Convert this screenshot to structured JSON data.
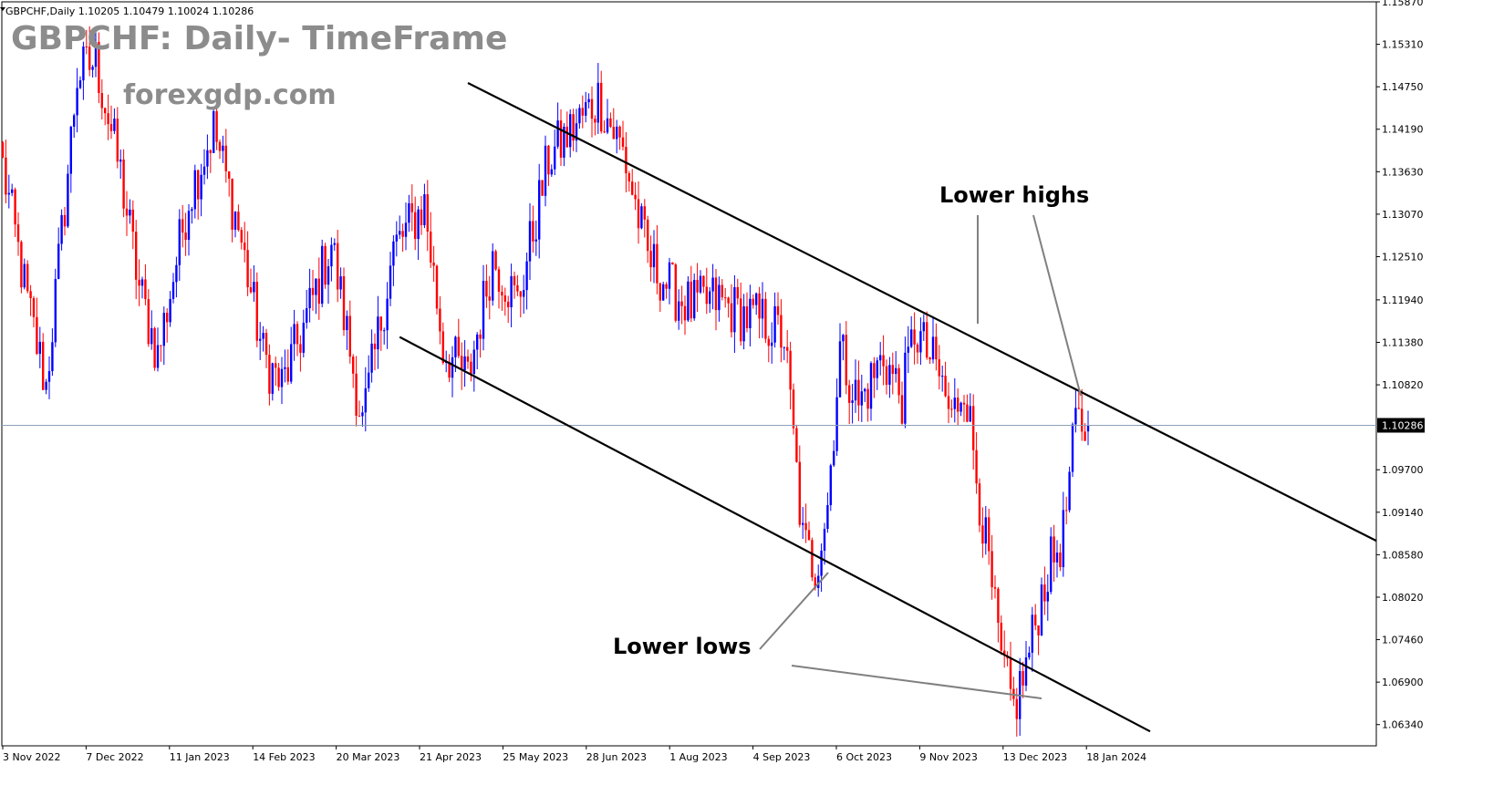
{
  "header": {
    "symbol_info": "GBPCHF,Daily  1.10205 1.10479 1.10024 1.10286",
    "title": "GBPCHF: Daily- TimeFrame",
    "watermark": "forexgdp.com"
  },
  "colors": {
    "bull": "#0000ff",
    "bear": "#ff0000",
    "trendline": "#000000",
    "pointer": "#808080",
    "price_line": "#8ba0b8",
    "price_box": "#000000"
  },
  "chart_data": {
    "type": "candlestick",
    "symbol": "GBPCHF",
    "timeframe": "Daily",
    "last_bar": {
      "open": 1.10205,
      "high": 1.10479,
      "low": 1.10024,
      "close": 1.10286
    },
    "current_price": 1.10286,
    "current_price_label": "1.10286",
    "x_tick_labels": [
      "3 Nov 2022",
      "7 Dec 2022",
      "11 Jan 2023",
      "14 Feb 2023",
      "20 Mar 2023",
      "21 Apr 2023",
      "25 May 2023",
      "28 Jun 2023",
      "1 Aug 2023",
      "4 Sep 2023",
      "6 Oct 2023",
      "9 Nov 2023",
      "13 Dec 2023",
      "18 Jan 2024"
    ],
    "y_tick_labels": [
      "1.15870",
      "1.15310",
      "1.14750",
      "1.14190",
      "1.13630",
      "1.13070",
      "1.12510",
      "1.11940",
      "1.11380",
      "1.10820",
      "1.09700",
      "1.09140",
      "1.08580",
      "1.08020",
      "1.07460",
      "1.06900",
      "1.06340"
    ],
    "ylim": [
      1.0606,
      1.1587
    ],
    "price_path": [
      [
        0,
        1.137
      ],
      [
        8,
        1.119
      ],
      [
        14,
        1.108
      ],
      [
        20,
        1.132
      ],
      [
        24,
        1.149
      ],
      [
        30,
        1.151
      ],
      [
        38,
        1.136
      ],
      [
        44,
        1.121
      ],
      [
        50,
        1.112
      ],
      [
        60,
        1.133
      ],
      [
        68,
        1.142
      ],
      [
        76,
        1.129
      ],
      [
        84,
        1.112
      ],
      [
        90,
        1.108
      ],
      [
        98,
        1.117
      ],
      [
        106,
        1.127
      ],
      [
        116,
        1.103
      ],
      [
        126,
        1.126
      ],
      [
        136,
        1.132
      ],
      [
        142,
        1.113
      ],
      [
        150,
        1.109
      ],
      [
        158,
        1.125
      ],
      [
        166,
        1.119
      ],
      [
        176,
        1.138
      ],
      [
        184,
        1.142
      ],
      [
        192,
        1.146
      ],
      [
        200,
        1.139
      ],
      [
        208,
        1.125
      ],
      [
        216,
        1.1205
      ],
      [
        222,
        1.1185
      ],
      [
        230,
        1.1195
      ],
      [
        238,
        1.1175
      ],
      [
        246,
        1.1165
      ],
      [
        252,
        1.1145
      ],
      [
        258,
        1.0875
      ],
      [
        262,
        1.084
      ],
      [
        266,
        1.0925
      ],
      [
        270,
        1.113
      ],
      [
        276,
        1.1055
      ],
      [
        284,
        1.112
      ],
      [
        290,
        1.1065
      ],
      [
        294,
        1.1155
      ],
      [
        302,
        1.1095
      ],
      [
        306,
        1.1035
      ],
      [
        310,
        1.109
      ],
      [
        314,
        1.0965
      ],
      [
        322,
        1.0715
      ],
      [
        326,
        1.0655
      ],
      [
        330,
        1.071
      ],
      [
        336,
        1.0825
      ],
      [
        342,
        1.0885
      ],
      [
        346,
        1.103
      ],
      [
        350,
        1.10286
      ]
    ],
    "trendlines": [
      {
        "name": "upper channel",
        "from": [
          150,
          1.148
        ],
        "to": [
          480,
          1.08
        ]
      },
      {
        "name": "lower channel",
        "from": [
          128,
          1.1145
        ],
        "to": [
          370,
          1.0625
        ]
      }
    ],
    "annotations": [
      "Lower highs",
      "Lower lows"
    ]
  }
}
